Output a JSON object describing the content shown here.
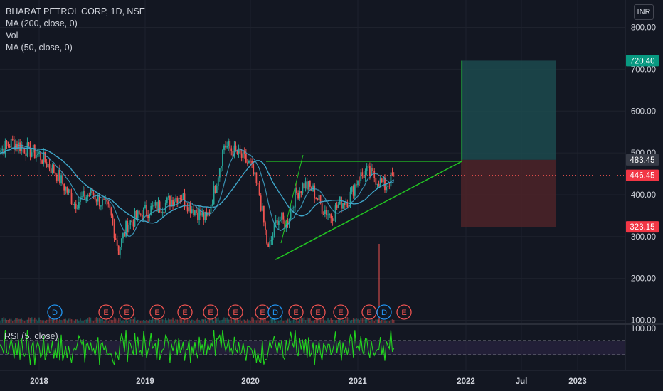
{
  "legend": {
    "symbol": "BHARAT PETROL CORP, 1D, NSE",
    "ma200": "MA (200, close, 0)",
    "vol": "Vol",
    "ma50": "MA (50, close, 0)"
  },
  "currency": "INR",
  "rsi_label": "RSI (5, close)",
  "colors": {
    "background": "#131722",
    "up": "#26a69a",
    "down": "#ef5350",
    "ma_line": "#3fa6c9",
    "trendline": "#22c422",
    "rsi_line": "#22d61e",
    "target_zone": "#1c4a4e",
    "stop_zone": "#4a2228",
    "rsi_band": "#2a2340"
  },
  "price_axis": {
    "ticks": [
      "800.00",
      "700.00",
      "600.00",
      "500.00",
      "400.00",
      "300.00",
      "200.00",
      "100.00"
    ],
    "rsi_top": "100.00",
    "boxes": [
      {
        "label": "720.40",
        "color": "#089981"
      },
      {
        "label": "483.45",
        "color": "#363a45"
      },
      {
        "label": "446.45",
        "color": "#f23645"
      },
      {
        "label": "323.15",
        "color": "#f23645"
      }
    ]
  },
  "time_axis": [
    "2018",
    "2019",
    "2020",
    "2021",
    "2022",
    "Jul",
    "2023"
  ],
  "events": [
    "D",
    "E",
    "E",
    "E",
    "E",
    "E",
    "E",
    "E",
    "D",
    "E",
    "E",
    "E",
    "E",
    "D",
    "E"
  ],
  "chart_data": {
    "type": "candlestick",
    "title": "BHARAT PETROL CORP, 1D, NSE",
    "ylim": [
      90,
      850
    ],
    "yticks": [
      100,
      200,
      300,
      400,
      500,
      600,
      700,
      800
    ],
    "current_price": 446.45,
    "position": {
      "entry": 483.45,
      "target": 720.4,
      "stop": 323.15
    },
    "price_path": [
      [
        "2017-08",
        500
      ],
      [
        "2017-10",
        525
      ],
      [
        "2018-01",
        495
      ],
      [
        "2018-03",
        450
      ],
      [
        "2018-05",
        380
      ],
      [
        "2018-07",
        405
      ],
      [
        "2018-09",
        360
      ],
      [
        "2018-10",
        268
      ],
      [
        "2018-11",
        330
      ],
      [
        "2019-01",
        360
      ],
      [
        "2019-03",
        375
      ],
      [
        "2019-05",
        400
      ],
      [
        "2019-06",
        375
      ],
      [
        "2019-08",
        340
      ],
      [
        "2019-09",
        420
      ],
      [
        "2019-10",
        520
      ],
      [
        "2019-12",
        490
      ],
      [
        "2020-01",
        470
      ],
      [
        "2020-02",
        400
      ],
      [
        "2020-03",
        265
      ],
      [
        "2020-04",
        345
      ],
      [
        "2020-05",
        330
      ],
      [
        "2020-06",
        400
      ],
      [
        "2020-07",
        425
      ],
      [
        "2020-08",
        410
      ],
      [
        "2020-09",
        370
      ],
      [
        "2020-10",
        350
      ],
      [
        "2020-11",
        380
      ],
      [
        "2020-12",
        390
      ],
      [
        "2021-01",
        440
      ],
      [
        "2021-02",
        455
      ],
      [
        "2021-03",
        440
      ],
      [
        "2021-04",
        420
      ],
      [
        "2021-05",
        446
      ]
    ],
    "drawings": {
      "horizontal_resistance": 480,
      "ascending_trendline_start": [
        "2020-03",
        245
      ],
      "triangle_apex": [
        "2021-12",
        480
      ],
      "projection_top": 720
    },
    "rsi": {
      "levels": [
        70,
        30
      ]
    }
  }
}
